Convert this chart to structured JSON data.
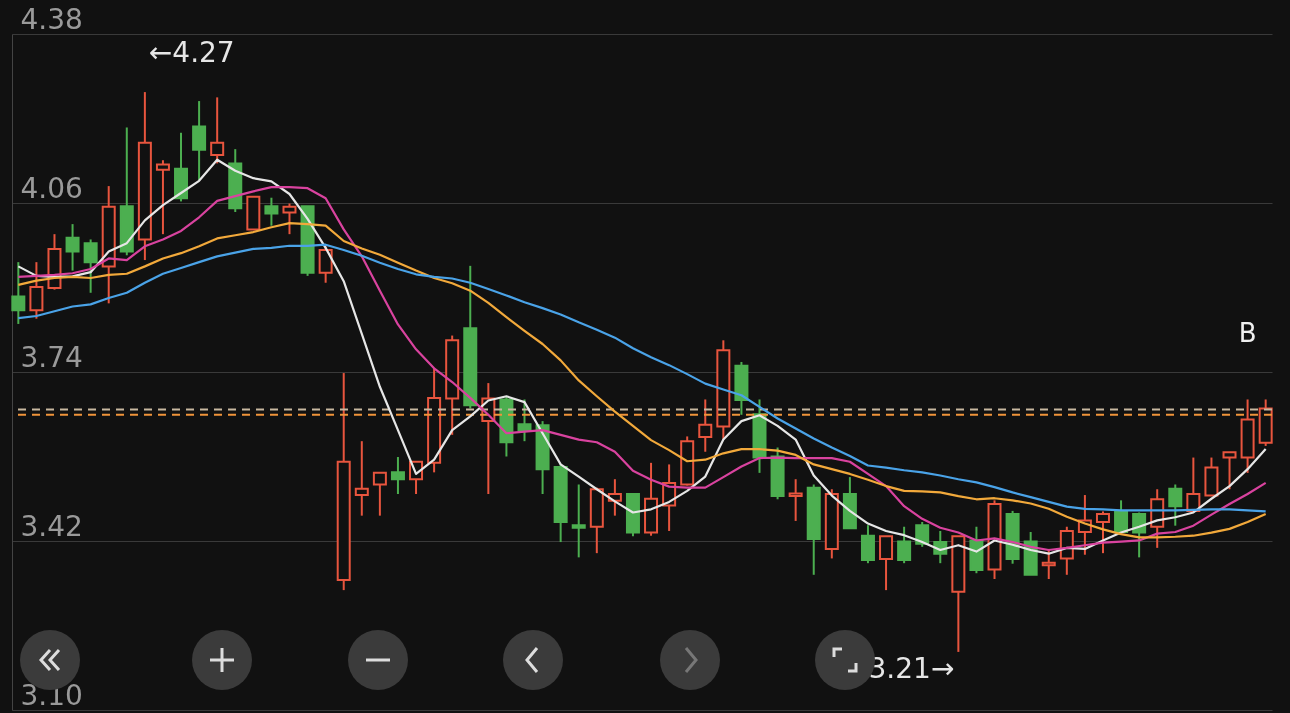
{
  "chart_data": {
    "type": "candlestick",
    "categories": [
      null,
      null,
      null,
      null,
      null,
      null,
      null,
      null,
      null,
      null,
      null,
      null,
      null,
      null,
      null,
      null,
      null,
      null,
      null,
      null,
      null,
      null,
      null,
      null,
      null,
      null,
      null,
      null,
      null,
      null,
      null,
      null,
      null,
      null,
      null,
      null,
      null,
      null,
      null,
      null,
      null,
      null,
      null,
      null,
      null,
      null,
      null,
      null,
      null,
      null,
      null,
      null,
      null,
      null,
      null,
      null,
      null,
      null,
      null,
      null,
      null,
      null,
      null,
      null,
      null,
      null,
      null,
      null,
      null,
      null
    ],
    "ohlc": [
      [
        3.883,
        3.948,
        3.831,
        3.857
      ],
      [
        3.857,
        3.948,
        3.841,
        3.901
      ],
      [
        3.899,
        4.001,
        3.896,
        3.973
      ],
      [
        3.994,
        4.02,
        3.932,
        3.968
      ],
      [
        3.984,
        3.991,
        3.89,
        3.948
      ],
      [
        3.94,
        4.092,
        3.87,
        4.053
      ],
      [
        4.054,
        4.203,
        3.961,
        3.968
      ],
      [
        3.991,
        4.27,
        3.952,
        4.174
      ],
      [
        4.123,
        4.141,
        4.001,
        4.133
      ],
      [
        4.125,
        4.193,
        4.063,
        4.069
      ],
      [
        4.205,
        4.253,
        4.102,
        4.161
      ],
      [
        4.151,
        4.26,
        4.135,
        4.174
      ],
      [
        4.135,
        4.162,
        4.043,
        4.05
      ],
      [
        4.01,
        4.072,
        4.01,
        4.072
      ],
      [
        4.054,
        4.07,
        4.017,
        4.04
      ],
      [
        4.042,
        4.059,
        4.001,
        4.053
      ],
      [
        4.054,
        4.054,
        3.922,
        3.928
      ],
      [
        3.928,
        3.978,
        3.909,
        3.971
      ],
      [
        3.346,
        3.738,
        3.327,
        3.57
      ],
      [
        3.507,
        3.609,
        3.468,
        3.519
      ],
      [
        3.527,
        3.549,
        3.468,
        3.549
      ],
      [
        3.55,
        3.579,
        3.509,
        3.537
      ],
      [
        3.537,
        3.57,
        3.509,
        3.57
      ],
      [
        3.568,
        3.748,
        3.55,
        3.691
      ],
      [
        3.69,
        3.809,
        3.621,
        3.8
      ],
      [
        3.823,
        3.941,
        3.671,
        3.677
      ],
      [
        3.647,
        3.719,
        3.509,
        3.69
      ],
      [
        3.688,
        3.694,
        3.58,
        3.607
      ],
      [
        3.641,
        3.688,
        3.609,
        3.63
      ],
      [
        3.639,
        3.647,
        3.509,
        3.556
      ],
      [
        3.56,
        3.566,
        3.418,
        3.456
      ],
      [
        3.45,
        3.527,
        3.389,
        3.445
      ],
      [
        3.447,
        3.521,
        3.397,
        3.518
      ],
      [
        3.496,
        3.537,
        3.468,
        3.509
      ],
      [
        3.509,
        3.509,
        3.429,
        3.436
      ],
      [
        3.436,
        3.568,
        3.43,
        3.5
      ],
      [
        3.487,
        3.565,
        3.439,
        3.53
      ],
      [
        3.527,
        3.618,
        3.525,
        3.609
      ],
      [
        3.617,
        3.688,
        3.589,
        3.64
      ],
      [
        3.637,
        3.8,
        3.612,
        3.781
      ],
      [
        3.752,
        3.759,
        3.659,
        3.687
      ],
      [
        3.66,
        3.688,
        3.549,
        3.578
      ],
      [
        3.58,
        3.597,
        3.499,
        3.505
      ],
      [
        3.505,
        3.537,
        3.458,
        3.51
      ],
      [
        3.521,
        3.527,
        3.356,
        3.424
      ],
      [
        3.405,
        3.518,
        3.387,
        3.509
      ],
      [
        3.509,
        3.541,
        3.444,
        3.444
      ],
      [
        3.43,
        3.45,
        3.378,
        3.384
      ],
      [
        3.386,
        3.429,
        3.327,
        3.429
      ],
      [
        3.419,
        3.447,
        3.378,
        3.384
      ],
      [
        3.45,
        3.456,
        3.409,
        3.415
      ],
      [
        3.418,
        3.439,
        3.378,
        3.396
      ],
      [
        3.324,
        3.429,
        3.21,
        3.429
      ],
      [
        3.421,
        3.447,
        3.359,
        3.365
      ],
      [
        3.366,
        3.497,
        3.348,
        3.49
      ],
      [
        3.471,
        3.477,
        3.377,
        3.386
      ],
      [
        3.419,
        3.437,
        3.356,
        3.356
      ],
      [
        3.374,
        3.405,
        3.348,
        3.379
      ],
      [
        3.387,
        3.447,
        3.356,
        3.439
      ],
      [
        3.437,
        3.507,
        3.394,
        3.459
      ],
      [
        3.456,
        3.476,
        3.397,
        3.471
      ],
      [
        3.477,
        3.497,
        3.436,
        3.437
      ],
      [
        3.471,
        3.474,
        3.389,
        3.436
      ],
      [
        3.447,
        3.518,
        3.407,
        3.499
      ],
      [
        3.519,
        3.527,
        3.449,
        3.486
      ],
      [
        3.477,
        3.578,
        3.477,
        3.509
      ],
      [
        3.506,
        3.578,
        3.506,
        3.559
      ],
      [
        3.578,
        3.588,
        3.518,
        3.588
      ],
      [
        3.578,
        3.688,
        3.549,
        3.65
      ],
      [
        3.606,
        3.688,
        3.6,
        3.671
      ]
    ],
    "series": [
      {
        "type": "line",
        "color": "#e6e6e6",
        "values": [
          3.94,
          3.922,
          3.92,
          3.921,
          3.929,
          3.968,
          3.984,
          4.027,
          4.056,
          4.079,
          4.102,
          4.142,
          4.121,
          4.107,
          4.101,
          4.077,
          4.03,
          3.975,
          3.912,
          3.812,
          3.712,
          3.63,
          3.547,
          3.574,
          3.63,
          3.656,
          3.686,
          3.694,
          3.683,
          3.624,
          3.565,
          3.542,
          3.518,
          3.495,
          3.474,
          3.48,
          3.494,
          3.515,
          3.542,
          3.612,
          3.647,
          3.658,
          3.638,
          3.612,
          3.544,
          3.506,
          3.477,
          3.453,
          3.439,
          3.431,
          3.418,
          3.403,
          3.412,
          3.4,
          3.421,
          3.413,
          3.403,
          3.396,
          3.407,
          3.405,
          3.421,
          3.436,
          3.447,
          3.459,
          3.465,
          3.474,
          3.5,
          3.524,
          3.556,
          3.594
        ]
      },
      {
        "type": "line",
        "color": "#d9439f",
        "values": [
          3.92,
          3.922,
          3.924,
          3.927,
          3.935,
          3.955,
          3.952,
          3.978,
          3.991,
          4.007,
          4.033,
          4.064,
          4.073,
          4.082,
          4.09,
          4.09,
          4.088,
          4.069,
          4.01,
          3.959,
          3.894,
          3.83,
          3.783,
          3.747,
          3.721,
          3.691,
          3.659,
          3.624,
          3.627,
          3.63,
          3.621,
          3.612,
          3.607,
          3.589,
          3.553,
          3.536,
          3.523,
          3.521,
          3.521,
          3.541,
          3.561,
          3.577,
          3.578,
          3.577,
          3.577,
          3.577,
          3.57,
          3.547,
          3.524,
          3.486,
          3.462,
          3.445,
          3.436,
          3.421,
          3.425,
          3.418,
          3.409,
          3.403,
          3.407,
          3.412,
          3.417,
          3.419,
          3.421,
          3.434,
          3.437,
          3.449,
          3.47,
          3.49,
          3.509,
          3.53
        ]
      },
      {
        "type": "line",
        "color": "#f2a93b",
        "values": [
          3.905,
          3.913,
          3.918,
          3.92,
          3.918,
          3.924,
          3.926,
          3.94,
          3.955,
          3.965,
          3.978,
          3.993,
          3.999,
          4.005,
          4.014,
          4.022,
          4.02,
          4.017,
          3.988,
          3.974,
          3.962,
          3.947,
          3.932,
          3.918,
          3.908,
          3.894,
          3.871,
          3.844,
          3.818,
          3.793,
          3.762,
          3.724,
          3.694,
          3.665,
          3.638,
          3.611,
          3.592,
          3.571,
          3.574,
          3.586,
          3.594,
          3.594,
          3.591,
          3.583,
          3.565,
          3.556,
          3.547,
          3.536,
          3.524,
          3.515,
          3.514,
          3.512,
          3.505,
          3.499,
          3.501,
          3.497,
          3.491,
          3.481,
          3.466,
          3.453,
          3.442,
          3.433,
          3.427,
          3.427,
          3.428,
          3.43,
          3.436,
          3.443,
          3.456,
          3.471
        ]
      },
      {
        "type": "line",
        "color": "#4aa3e8",
        "values": [
          3.842,
          3.846,
          3.855,
          3.864,
          3.868,
          3.88,
          3.89,
          3.909,
          3.926,
          3.937,
          3.948,
          3.959,
          3.966,
          3.973,
          3.975,
          3.979,
          3.979,
          3.981,
          3.971,
          3.96,
          3.947,
          3.935,
          3.925,
          3.92,
          3.917,
          3.909,
          3.897,
          3.885,
          3.872,
          3.861,
          3.849,
          3.834,
          3.82,
          3.805,
          3.785,
          3.768,
          3.753,
          3.736,
          3.718,
          3.707,
          3.696,
          3.674,
          3.652,
          3.633,
          3.614,
          3.597,
          3.581,
          3.563,
          3.559,
          3.554,
          3.55,
          3.544,
          3.537,
          3.531,
          3.522,
          3.512,
          3.503,
          3.494,
          3.485,
          3.481,
          3.48,
          3.478,
          3.478,
          3.478,
          3.478,
          3.479,
          3.48,
          3.48,
          3.478,
          3.476
        ]
      }
    ],
    "ylim": [
      3.1,
      4.38
    ],
    "yticks": [
      {
        "value": 3.1,
        "label": "3.10"
      },
      3.42,
      3.74,
      4.06,
      4.38
    ],
    "grid": "y",
    "tick_labels": "y",
    "marker": "none",
    "ref_lines": [
      {
        "axis": "y",
        "value": 3.669,
        "color": "#c8b8a0",
        "line_style": "dashed"
      },
      {
        "axis": "y",
        "value": 3.659,
        "color": "#f0943a",
        "line_style": "dashed"
      }
    ],
    "annotations": [
      "←4.27",
      "3.21→",
      "B"
    ]
  }
}
